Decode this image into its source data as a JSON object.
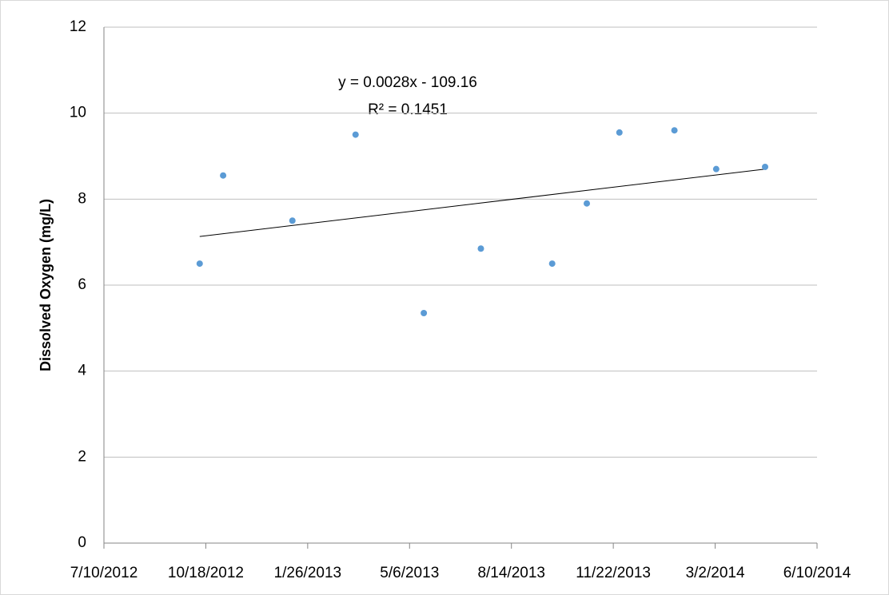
{
  "chart_data": {
    "type": "scatter",
    "y_label": "Dissolved Oxygen (mg/L)",
    "annotations": [
      "y = 0.0028x - 109.16",
      "R² = 0.1451"
    ],
    "trendline": true,
    "x": [
      "10/12/2012",
      "11/4/2012",
      "1/11/2013",
      "3/14/2013",
      "5/20/2013",
      "7/15/2013",
      "9/23/2013",
      "10/27/2013",
      "11/28/2013",
      "1/21/2014",
      "3/3/2014",
      "4/20/2014"
    ],
    "values": [
      6.5,
      8.55,
      7.5,
      9.5,
      5.35,
      6.85,
      6.5,
      7.9,
      9.55,
      9.6,
      8.7,
      8.75
    ],
    "color": "#5b9bd5",
    "xlim": [
      "7/10/2012",
      "6/10/2014"
    ],
    "xticks": [
      "7/10/2012",
      "10/18/2012",
      "1/26/2013",
      "5/6/2013",
      "8/14/2013",
      "11/22/2013",
      "3/2/2014",
      "6/10/2014"
    ],
    "ylim": [
      0,
      12
    ],
    "yticks": [
      0,
      2,
      4,
      6,
      8,
      10,
      12
    ],
    "grid": true
  }
}
